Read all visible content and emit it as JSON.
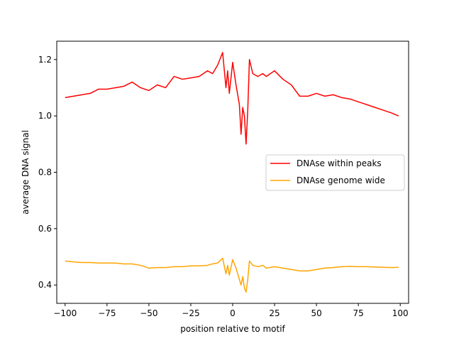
{
  "chart_data": {
    "type": "line",
    "title": "",
    "xlabel": "position relative to motif",
    "ylabel": "average DNA signal",
    "xlim": [
      -105,
      105
    ],
    "ylim": [
      0.335,
      1.265
    ],
    "xticks": [
      -100,
      -75,
      -50,
      -25,
      0,
      25,
      50,
      75,
      100
    ],
    "xtick_labels": [
      "−100",
      "−75",
      "−50",
      "−25",
      "0",
      "25",
      "50",
      "75",
      "100"
    ],
    "yticks": [
      0.4,
      0.6,
      0.8,
      1.0,
      1.2
    ],
    "ytick_labels": [
      "0.4",
      "0.6",
      "0.8",
      "1.0",
      "1.2"
    ],
    "grid": false,
    "legend_position": "center-right",
    "x": [
      -100,
      -95,
      -90,
      -85,
      -80,
      -75,
      -70,
      -65,
      -60,
      -55,
      -50,
      -45,
      -40,
      -35,
      -30,
      -25,
      -20,
      -15,
      -12,
      -9,
      -6,
      -4,
      -3,
      -2,
      0,
      2,
      4,
      5,
      6,
      7,
      8,
      9,
      10,
      12,
      15,
      18,
      20,
      25,
      30,
      35,
      40,
      45,
      50,
      55,
      60,
      65,
      70,
      75,
      80,
      85,
      90,
      95,
      99
    ],
    "series": [
      {
        "name": "DNAse within peaks",
        "color": "#ff0000",
        "values": [
          1.065,
          1.07,
          1.075,
          1.08,
          1.095,
          1.095,
          1.1,
          1.105,
          1.12,
          1.1,
          1.09,
          1.11,
          1.1,
          1.14,
          1.13,
          1.135,
          1.14,
          1.16,
          1.15,
          1.18,
          1.225,
          1.1,
          1.16,
          1.08,
          1.19,
          1.11,
          1.04,
          0.935,
          1.03,
          1.0,
          0.9,
          1.02,
          1.2,
          1.15,
          1.14,
          1.15,
          1.14,
          1.16,
          1.13,
          1.11,
          1.07,
          1.07,
          1.08,
          1.07,
          1.075,
          1.065,
          1.06,
          1.05,
          1.04,
          1.03,
          1.02,
          1.01,
          1.0
        ]
      },
      {
        "name": "DNAse genome wide",
        "color": "#ffa500",
        "values": [
          0.485,
          0.482,
          0.48,
          0.48,
          0.478,
          0.478,
          0.478,
          0.475,
          0.475,
          0.47,
          0.46,
          0.462,
          0.462,
          0.465,
          0.465,
          0.468,
          0.468,
          0.47,
          0.475,
          0.478,
          0.495,
          0.44,
          0.47,
          0.435,
          0.49,
          0.46,
          0.42,
          0.4,
          0.43,
          0.39,
          0.375,
          0.42,
          0.485,
          0.47,
          0.465,
          0.47,
          0.46,
          0.465,
          0.46,
          0.455,
          0.45,
          0.45,
          0.455,
          0.46,
          0.462,
          0.465,
          0.466,
          0.465,
          0.465,
          0.464,
          0.463,
          0.462,
          0.463
        ]
      }
    ]
  }
}
